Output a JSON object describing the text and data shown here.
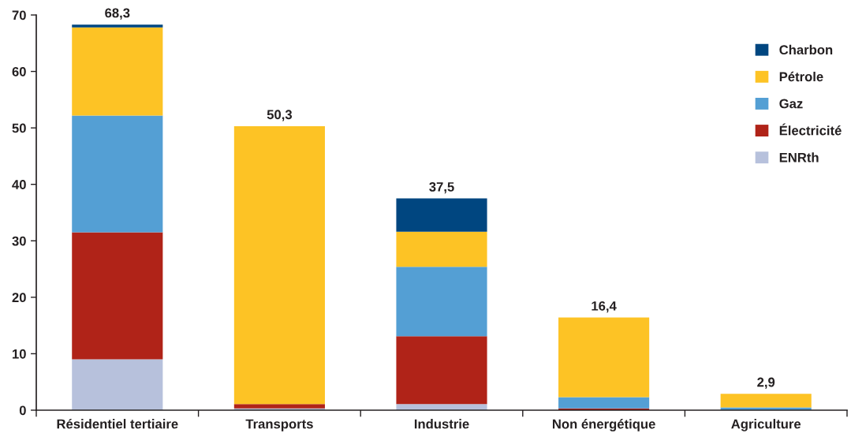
{
  "chart_data": {
    "type": "bar",
    "stacked": true,
    "categories": [
      "Résidentiel tertiaire",
      "Transports",
      "Industrie",
      "Non énergétique",
      "Agriculture"
    ],
    "series": [
      {
        "name": "ENRth",
        "color": "#b7c1dc",
        "values": [
          9.0,
          0.3,
          1.1,
          null,
          null
        ]
      },
      {
        "name": "Électricité",
        "color": "#b02318",
        "values": [
          22.5,
          0.8,
          12.0,
          0.3,
          null
        ]
      },
      {
        "name": "Gaz",
        "color": "#549fd4",
        "values": [
          20.7,
          null,
          12.3,
          2.0,
          0.5
        ]
      },
      {
        "name": "Pétrole",
        "color": "#fdc325",
        "values": [
          15.6,
          49.2,
          6.2,
          14.1,
          2.4
        ]
      },
      {
        "name": "Charbon",
        "color": "#004680",
        "values": [
          0.5,
          null,
          5.9,
          null,
          null
        ]
      }
    ],
    "totals": [
      "68,3",
      "50,3",
      "37,5",
      "16,4",
      "2,9"
    ],
    "ylim": [
      0,
      70
    ],
    "yticks": [
      0,
      10,
      20,
      30,
      40,
      50,
      60,
      70
    ],
    "legend": "top right"
  }
}
